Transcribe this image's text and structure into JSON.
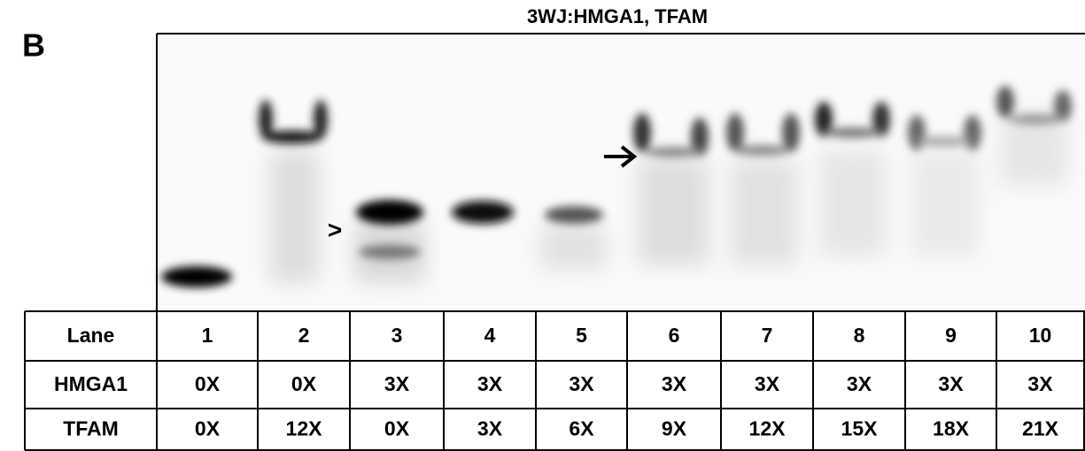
{
  "panel_label": "B",
  "title": "3WJ:HMGA1, TFAM",
  "gel": {
    "marker": ">"
  },
  "table": {
    "rows": [
      [
        "Lane",
        "1",
        "2",
        "3",
        "4",
        "5",
        "6",
        "7",
        "8",
        "9",
        "10"
      ],
      [
        "HMGA1",
        "0X",
        "0X",
        "3X",
        "3X",
        "3X",
        "3X",
        "3X",
        "3X",
        "3X",
        "3X"
      ],
      [
        "TFAM",
        "0X",
        "12X",
        "0X",
        "3X",
        "6X",
        "9X",
        "12X",
        "15X",
        "18X",
        "21X"
      ]
    ]
  }
}
